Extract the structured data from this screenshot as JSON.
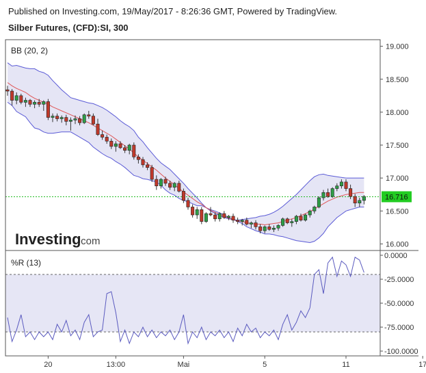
{
  "header": {
    "published": "Published on Investing.com, 19/May/2017 - 8:26:36 GMT, Powered by TradingView.",
    "symbol": "Silber Futures, (CFD):SI, 300"
  },
  "logo": {
    "main": "Investing",
    "suffix": ".com"
  },
  "colors": {
    "up_candle": "#2e9e47",
    "down_candle": "#c0392b",
    "band": "#5a5ad6",
    "band_fill": "#dcdcf2",
    "basis": "#e05656",
    "last_price_line": "#22bb22",
    "last_price_bg": "#22cc22",
    "wr_line": "#5a5abf",
    "wr_fill": "#e6e6f5"
  },
  "chart_data": [
    {
      "type": "candlestick",
      "panel_label": "BB (20, 2)",
      "ylim": [
        15.9,
        19.1
      ],
      "y_ticks": [
        {
          "v": 19.0,
          "label": "19.000"
        },
        {
          "v": 18.5,
          "label": "18.500"
        },
        {
          "v": 18.0,
          "label": "18.000"
        },
        {
          "v": 17.5,
          "label": "17.500"
        },
        {
          "v": 17.0,
          "label": "17.000"
        },
        {
          "v": 16.5,
          "label": "16.500"
        },
        {
          "v": 16.0,
          "label": "16.000"
        }
      ],
      "x_ticks": [
        {
          "i": 9,
          "label": "20"
        },
        {
          "i": 24,
          "label": "13:00"
        },
        {
          "i": 39,
          "label": "Mai"
        },
        {
          "i": 57,
          "label": "5"
        },
        {
          "i": 75,
          "label": "11"
        },
        {
          "i": 92,
          "label": "17"
        }
      ],
      "last_price": {
        "value": 16.716,
        "label": "16.716"
      },
      "ohlc": [
        [
          18.34,
          18.4,
          18.25,
          18.32
        ],
        [
          18.32,
          18.35,
          18.1,
          18.18
        ],
        [
          18.18,
          18.3,
          18.12,
          18.25
        ],
        [
          18.25,
          18.28,
          18.12,
          18.15
        ],
        [
          18.15,
          18.22,
          18.08,
          18.18
        ],
        [
          18.18,
          18.2,
          18.08,
          18.12
        ],
        [
          18.12,
          18.18,
          18.06,
          18.15
        ],
        [
          18.15,
          18.2,
          18.08,
          18.12
        ],
        [
          18.12,
          18.18,
          18.02,
          18.16
        ],
        [
          18.16,
          18.2,
          17.88,
          17.92
        ],
        [
          17.92,
          17.98,
          17.85,
          17.94
        ],
        [
          17.94,
          17.98,
          17.86,
          17.9
        ],
        [
          17.9,
          17.95,
          17.84,
          17.92
        ],
        [
          17.92,
          17.96,
          17.8,
          17.86
        ],
        [
          17.86,
          17.92,
          17.72,
          17.88
        ],
        [
          17.88,
          17.95,
          17.82,
          17.9
        ],
        [
          17.9,
          17.94,
          17.8,
          17.84
        ],
        [
          17.84,
          17.98,
          17.82,
          17.96
        ],
        [
          17.96,
          18.02,
          17.9,
          17.94
        ],
        [
          17.94,
          17.98,
          17.8,
          17.82
        ],
        [
          17.82,
          17.9,
          17.64,
          17.66
        ],
        [
          17.66,
          17.72,
          17.58,
          17.62
        ],
        [
          17.62,
          17.66,
          17.52,
          17.56
        ],
        [
          17.56,
          17.6,
          17.44,
          17.48
        ],
        [
          17.48,
          17.56,
          17.4,
          17.52
        ],
        [
          17.52,
          17.56,
          17.44,
          17.46
        ],
        [
          17.46,
          17.5,
          17.38,
          17.42
        ],
        [
          17.42,
          17.52,
          17.36,
          17.5
        ],
        [
          17.5,
          17.54,
          17.28,
          17.32
        ],
        [
          17.32,
          17.36,
          17.22,
          17.28
        ],
        [
          17.28,
          17.32,
          17.16,
          17.2
        ],
        [
          17.2,
          17.24,
          17.12,
          17.16
        ],
        [
          17.16,
          17.2,
          16.94,
          16.98
        ],
        [
          16.98,
          17.04,
          16.82,
          16.88
        ],
        [
          16.88,
          17.0,
          16.84,
          16.98
        ],
        [
          16.98,
          17.02,
          16.88,
          16.92
        ],
        [
          16.92,
          16.96,
          16.82,
          16.86
        ],
        [
          16.86,
          16.94,
          16.8,
          16.92
        ],
        [
          16.92,
          16.96,
          16.78,
          16.8
        ],
        [
          16.8,
          16.84,
          16.62,
          16.66
        ],
        [
          16.66,
          16.7,
          16.52,
          16.56
        ],
        [
          16.56,
          16.6,
          16.4,
          16.44
        ],
        [
          16.44,
          16.56,
          16.38,
          16.52
        ],
        [
          16.52,
          16.56,
          16.3,
          16.34
        ],
        [
          16.34,
          16.48,
          16.32,
          16.46
        ],
        [
          16.46,
          16.56,
          16.42,
          16.44
        ],
        [
          16.44,
          16.48,
          16.34,
          16.38
        ],
        [
          16.38,
          16.48,
          16.34,
          16.46
        ],
        [
          16.46,
          16.5,
          16.38,
          16.4
        ],
        [
          16.4,
          16.44,
          16.36,
          16.42
        ],
        [
          16.42,
          16.46,
          16.32,
          16.36
        ],
        [
          16.36,
          16.4,
          16.3,
          16.34
        ],
        [
          16.34,
          16.38,
          16.28,
          16.36
        ],
        [
          16.36,
          16.4,
          16.28,
          16.3
        ],
        [
          16.3,
          16.34,
          16.24,
          16.32
        ],
        [
          16.32,
          16.36,
          16.22,
          16.26
        ],
        [
          16.26,
          16.3,
          16.16,
          16.2
        ],
        [
          16.2,
          16.28,
          16.16,
          16.26
        ],
        [
          16.26,
          16.3,
          16.2,
          16.22
        ],
        [
          16.22,
          16.28,
          16.18,
          16.24
        ],
        [
          16.24,
          16.3,
          16.2,
          16.28
        ],
        [
          16.28,
          16.4,
          16.26,
          16.38
        ],
        [
          16.38,
          16.4,
          16.3,
          16.32
        ],
        [
          16.32,
          16.38,
          16.26,
          16.34
        ],
        [
          16.34,
          16.44,
          16.3,
          16.42
        ],
        [
          16.42,
          16.46,
          16.34,
          16.36
        ],
        [
          16.36,
          16.46,
          16.34,
          16.44
        ],
        [
          16.44,
          16.52,
          16.4,
          16.5
        ],
        [
          16.5,
          16.58,
          16.46,
          16.56
        ],
        [
          16.56,
          16.72,
          16.54,
          16.7
        ],
        [
          16.7,
          16.82,
          16.66,
          16.78
        ],
        [
          16.78,
          16.84,
          16.7,
          16.72
        ],
        [
          16.72,
          16.86,
          16.7,
          16.84
        ],
        [
          16.84,
          16.92,
          16.8,
          16.88
        ],
        [
          16.88,
          16.98,
          16.84,
          16.94
        ],
        [
          16.94,
          16.98,
          16.8,
          16.84
        ],
        [
          16.84,
          16.9,
          16.68,
          16.72
        ],
        [
          16.72,
          16.76,
          16.56,
          16.62
        ],
        [
          16.62,
          16.7,
          16.56,
          16.66
        ],
        [
          16.66,
          16.74,
          16.6,
          16.72
        ]
      ],
      "bb_upper": [
        18.75,
        18.7,
        18.71,
        18.69,
        18.67,
        18.66,
        18.66,
        18.62,
        18.6,
        18.56,
        18.48,
        18.41,
        18.34,
        18.28,
        18.22,
        18.2,
        18.18,
        18.16,
        18.14,
        18.13,
        18.1,
        18.07,
        18.03,
        17.98,
        17.93,
        17.87,
        17.82,
        17.78,
        17.72,
        17.62,
        17.55,
        17.46,
        17.38,
        17.3,
        17.23,
        17.18,
        17.13,
        17.06,
        16.99,
        16.92,
        16.84,
        16.77,
        16.7,
        16.62,
        16.55,
        16.5,
        16.46,
        16.43,
        16.4,
        16.38,
        16.37,
        16.36,
        16.37,
        16.38,
        16.39,
        16.4,
        16.42,
        16.43,
        16.45,
        16.48,
        16.52,
        16.57,
        16.63,
        16.69,
        16.75,
        16.82,
        16.89,
        16.96,
        17.02,
        17.05,
        17.06,
        17.04,
        17.03,
        17.02,
        17.01,
        17.0,
        17.0,
        17.0,
        17.0,
        17.0
      ],
      "bb_basis": [
        18.45,
        18.4,
        18.36,
        18.33,
        18.3,
        18.25,
        18.21,
        18.18,
        18.15,
        18.12,
        18.08,
        18.05,
        18.02,
        17.99,
        17.96,
        17.93,
        17.9,
        17.87,
        17.84,
        17.8,
        17.76,
        17.72,
        17.68,
        17.64,
        17.59,
        17.54,
        17.49,
        17.44,
        17.38,
        17.32,
        17.27,
        17.22,
        17.17,
        17.12,
        17.06,
        17.0,
        16.95,
        16.9,
        16.84,
        16.79,
        16.74,
        16.69,
        16.64,
        16.6,
        16.55,
        16.51,
        16.48,
        16.45,
        16.42,
        16.39,
        16.37,
        16.35,
        16.34,
        16.32,
        16.31,
        16.3,
        16.3,
        16.29,
        16.3,
        16.31,
        16.32,
        16.34,
        16.36,
        16.38,
        16.4,
        16.43,
        16.46,
        16.49,
        16.53,
        16.57,
        16.61,
        16.65,
        16.68,
        16.71,
        16.73,
        16.75,
        16.76,
        16.77,
        16.78,
        16.78
      ],
      "bb_lower": [
        18.15,
        18.1,
        18.01,
        17.97,
        17.93,
        17.84,
        17.76,
        17.74,
        17.7,
        17.68,
        17.68,
        17.69,
        17.7,
        17.7,
        17.7,
        17.66,
        17.62,
        17.58,
        17.54,
        17.47,
        17.42,
        17.37,
        17.33,
        17.3,
        17.25,
        17.21,
        17.16,
        17.1,
        17.04,
        17.02,
        16.99,
        16.98,
        16.96,
        16.94,
        16.89,
        16.82,
        16.77,
        16.74,
        16.69,
        16.66,
        16.64,
        16.61,
        16.58,
        16.58,
        16.55,
        16.52,
        16.5,
        16.47,
        16.44,
        16.4,
        16.37,
        16.34,
        16.31,
        16.26,
        16.23,
        16.2,
        16.18,
        16.15,
        16.15,
        16.14,
        16.12,
        16.11,
        16.09,
        16.07,
        16.05,
        16.04,
        16.03,
        16.02,
        16.04,
        16.09,
        16.16,
        16.26,
        16.33,
        16.4,
        16.45,
        16.5,
        16.52,
        16.54,
        16.56,
        16.56
      ]
    },
    {
      "type": "line",
      "panel_label": "%R (13)",
      "ylim": [
        -105,
        5
      ],
      "y_ticks": [
        {
          "v": 0,
          "label": "0.0000"
        },
        {
          "v": -25,
          "label": "-25.0000"
        },
        {
          "v": -50,
          "label": "-50.0000"
        },
        {
          "v": -75,
          "label": "-75.0000"
        },
        {
          "v": -100,
          "label": "-100.0000"
        }
      ],
      "bands": [
        -20,
        -80
      ],
      "values": [
        -65,
        -90,
        -78,
        -62,
        -85,
        -80,
        -88,
        -80,
        -85,
        -80,
        -88,
        -72,
        -80,
        -68,
        -84,
        -78,
        -88,
        -70,
        -62,
        -85,
        -80,
        -78,
        -40,
        -38,
        -60,
        -90,
        -78,
        -92,
        -80,
        -85,
        -75,
        -85,
        -78,
        -86,
        -80,
        -84,
        -78,
        -88,
        -80,
        -62,
        -92,
        -80,
        -86,
        -75,
        -88,
        -80,
        -84,
        -78,
        -86,
        -80,
        -90,
        -76,
        -84,
        -72,
        -80,
        -76,
        -86,
        -80,
        -84,
        -78,
        -88,
        -72,
        -62,
        -78,
        -70,
        -58,
        -65,
        -55,
        -20,
        -15,
        -40,
        -8,
        -2,
        -22,
        -6,
        -10,
        -22,
        -2,
        -5,
        -18
      ]
    }
  ]
}
